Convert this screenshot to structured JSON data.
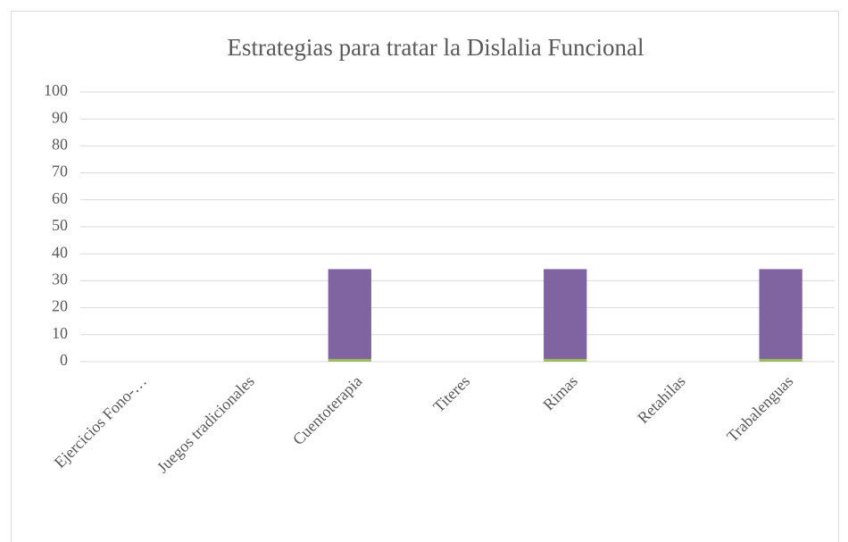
{
  "chart_data": {
    "type": "bar",
    "stacked": true,
    "title": "Estrategias para tratar la Dislalia Funcional",
    "categories": [
      "Ejercicios Fono-…",
      "Juegos tradicionales",
      "Cuentoterapia",
      "Titeres",
      "Rimas",
      "Retahilas",
      "Trabalenguas"
    ],
    "series": [
      {
        "color": "#9bbb59",
        "values": [
          0,
          0,
          1,
          0,
          1,
          0,
          1
        ]
      },
      {
        "color": "#8064a2",
        "values": [
          0,
          0,
          33.3,
          0,
          33.3,
          0,
          33.3
        ]
      }
    ],
    "ylim": [
      0,
      100
    ],
    "yticks": [
      0,
      10,
      20,
      30,
      40,
      50,
      60,
      70,
      80,
      90,
      100
    ],
    "grid": true
  }
}
